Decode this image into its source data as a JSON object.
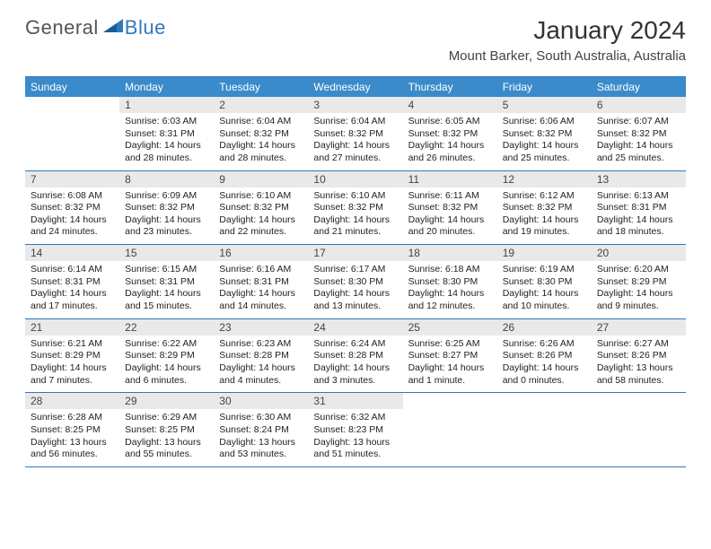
{
  "logo": {
    "text1": "General",
    "text2": "Blue"
  },
  "title": "January 2024",
  "location": "Mount Barker, South Australia, Australia",
  "colors": {
    "header_bar": "#3b8bca",
    "accent_line": "#2f78bd",
    "daynum_bg": "#e9e9e9",
    "logo_blue": "#2f78bd"
  },
  "weekdays": [
    "Sunday",
    "Monday",
    "Tuesday",
    "Wednesday",
    "Thursday",
    "Friday",
    "Saturday"
  ],
  "weeks": [
    [
      null,
      {
        "n": "1",
        "sr": "Sunrise: 6:03 AM",
        "ss": "Sunset: 8:31 PM",
        "d1": "Daylight: 14 hours",
        "d2": "and 28 minutes."
      },
      {
        "n": "2",
        "sr": "Sunrise: 6:04 AM",
        "ss": "Sunset: 8:32 PM",
        "d1": "Daylight: 14 hours",
        "d2": "and 28 minutes."
      },
      {
        "n": "3",
        "sr": "Sunrise: 6:04 AM",
        "ss": "Sunset: 8:32 PM",
        "d1": "Daylight: 14 hours",
        "d2": "and 27 minutes."
      },
      {
        "n": "4",
        "sr": "Sunrise: 6:05 AM",
        "ss": "Sunset: 8:32 PM",
        "d1": "Daylight: 14 hours",
        "d2": "and 26 minutes."
      },
      {
        "n": "5",
        "sr": "Sunrise: 6:06 AM",
        "ss": "Sunset: 8:32 PM",
        "d1": "Daylight: 14 hours",
        "d2": "and 25 minutes."
      },
      {
        "n": "6",
        "sr": "Sunrise: 6:07 AM",
        "ss": "Sunset: 8:32 PM",
        "d1": "Daylight: 14 hours",
        "d2": "and 25 minutes."
      }
    ],
    [
      {
        "n": "7",
        "sr": "Sunrise: 6:08 AM",
        "ss": "Sunset: 8:32 PM",
        "d1": "Daylight: 14 hours",
        "d2": "and 24 minutes."
      },
      {
        "n": "8",
        "sr": "Sunrise: 6:09 AM",
        "ss": "Sunset: 8:32 PM",
        "d1": "Daylight: 14 hours",
        "d2": "and 23 minutes."
      },
      {
        "n": "9",
        "sr": "Sunrise: 6:10 AM",
        "ss": "Sunset: 8:32 PM",
        "d1": "Daylight: 14 hours",
        "d2": "and 22 minutes."
      },
      {
        "n": "10",
        "sr": "Sunrise: 6:10 AM",
        "ss": "Sunset: 8:32 PM",
        "d1": "Daylight: 14 hours",
        "d2": "and 21 minutes."
      },
      {
        "n": "11",
        "sr": "Sunrise: 6:11 AM",
        "ss": "Sunset: 8:32 PM",
        "d1": "Daylight: 14 hours",
        "d2": "and 20 minutes."
      },
      {
        "n": "12",
        "sr": "Sunrise: 6:12 AM",
        "ss": "Sunset: 8:32 PM",
        "d1": "Daylight: 14 hours",
        "d2": "and 19 minutes."
      },
      {
        "n": "13",
        "sr": "Sunrise: 6:13 AM",
        "ss": "Sunset: 8:31 PM",
        "d1": "Daylight: 14 hours",
        "d2": "and 18 minutes."
      }
    ],
    [
      {
        "n": "14",
        "sr": "Sunrise: 6:14 AM",
        "ss": "Sunset: 8:31 PM",
        "d1": "Daylight: 14 hours",
        "d2": "and 17 minutes."
      },
      {
        "n": "15",
        "sr": "Sunrise: 6:15 AM",
        "ss": "Sunset: 8:31 PM",
        "d1": "Daylight: 14 hours",
        "d2": "and 15 minutes."
      },
      {
        "n": "16",
        "sr": "Sunrise: 6:16 AM",
        "ss": "Sunset: 8:31 PM",
        "d1": "Daylight: 14 hours",
        "d2": "and 14 minutes."
      },
      {
        "n": "17",
        "sr": "Sunrise: 6:17 AM",
        "ss": "Sunset: 8:30 PM",
        "d1": "Daylight: 14 hours",
        "d2": "and 13 minutes."
      },
      {
        "n": "18",
        "sr": "Sunrise: 6:18 AM",
        "ss": "Sunset: 8:30 PM",
        "d1": "Daylight: 14 hours",
        "d2": "and 12 minutes."
      },
      {
        "n": "19",
        "sr": "Sunrise: 6:19 AM",
        "ss": "Sunset: 8:30 PM",
        "d1": "Daylight: 14 hours",
        "d2": "and 10 minutes."
      },
      {
        "n": "20",
        "sr": "Sunrise: 6:20 AM",
        "ss": "Sunset: 8:29 PM",
        "d1": "Daylight: 14 hours",
        "d2": "and 9 minutes."
      }
    ],
    [
      {
        "n": "21",
        "sr": "Sunrise: 6:21 AM",
        "ss": "Sunset: 8:29 PM",
        "d1": "Daylight: 14 hours",
        "d2": "and 7 minutes."
      },
      {
        "n": "22",
        "sr": "Sunrise: 6:22 AM",
        "ss": "Sunset: 8:29 PM",
        "d1": "Daylight: 14 hours",
        "d2": "and 6 minutes."
      },
      {
        "n": "23",
        "sr": "Sunrise: 6:23 AM",
        "ss": "Sunset: 8:28 PM",
        "d1": "Daylight: 14 hours",
        "d2": "and 4 minutes."
      },
      {
        "n": "24",
        "sr": "Sunrise: 6:24 AM",
        "ss": "Sunset: 8:28 PM",
        "d1": "Daylight: 14 hours",
        "d2": "and 3 minutes."
      },
      {
        "n": "25",
        "sr": "Sunrise: 6:25 AM",
        "ss": "Sunset: 8:27 PM",
        "d1": "Daylight: 14 hours",
        "d2": "and 1 minute."
      },
      {
        "n": "26",
        "sr": "Sunrise: 6:26 AM",
        "ss": "Sunset: 8:26 PM",
        "d1": "Daylight: 14 hours",
        "d2": "and 0 minutes."
      },
      {
        "n": "27",
        "sr": "Sunrise: 6:27 AM",
        "ss": "Sunset: 8:26 PM",
        "d1": "Daylight: 13 hours",
        "d2": "and 58 minutes."
      }
    ],
    [
      {
        "n": "28",
        "sr": "Sunrise: 6:28 AM",
        "ss": "Sunset: 8:25 PM",
        "d1": "Daylight: 13 hours",
        "d2": "and 56 minutes."
      },
      {
        "n": "29",
        "sr": "Sunrise: 6:29 AM",
        "ss": "Sunset: 8:25 PM",
        "d1": "Daylight: 13 hours",
        "d2": "and 55 minutes."
      },
      {
        "n": "30",
        "sr": "Sunrise: 6:30 AM",
        "ss": "Sunset: 8:24 PM",
        "d1": "Daylight: 13 hours",
        "d2": "and 53 minutes."
      },
      {
        "n": "31",
        "sr": "Sunrise: 6:32 AM",
        "ss": "Sunset: 8:23 PM",
        "d1": "Daylight: 13 hours",
        "d2": "and 51 minutes."
      },
      null,
      null,
      null
    ]
  ]
}
